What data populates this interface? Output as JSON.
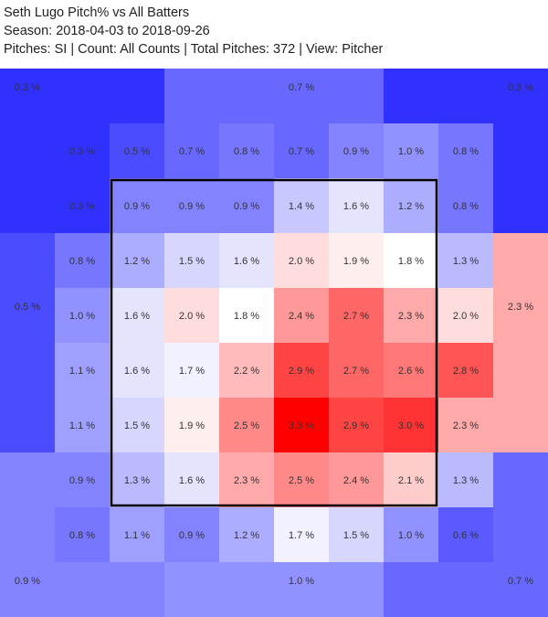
{
  "title": "Seth Lugo Pitch% vs All Batters",
  "season": "Season: 2018-04-03 to 2018-09-26",
  "info": "Pitches: SI | Count: All Counts | Total Pitches: 372 | View: Pitcher",
  "colors": {
    "low": "#3131ff",
    "mid": "#ffffff",
    "high": "#ff0000",
    "zone_border": "#000000"
  },
  "chart_data": {
    "type": "heatmap",
    "unit": "%",
    "color_range": [
      0.3,
      3.3
    ],
    "outer_regions": [
      {
        "name": "top-left",
        "value": 0.3,
        "label": "0.3 %"
      },
      {
        "name": "top-center",
        "value": 0.7,
        "label": "0.7 %"
      },
      {
        "name": "top-right",
        "value": 0.3,
        "label": "0.3 %"
      },
      {
        "name": "middle-left",
        "value": 0.5,
        "label": "0.5 %"
      },
      {
        "name": "middle-right",
        "value": 2.3,
        "label": "2.3 %"
      },
      {
        "name": "bottom-left",
        "value": 0.9,
        "label": "0.9 %"
      },
      {
        "name": "bottom-center",
        "value": 1.0,
        "label": "1.0 %"
      },
      {
        "name": "bottom-right",
        "value": 0.7,
        "label": "0.7 %"
      }
    ],
    "grid": [
      [
        null,
        0.5,
        0.7,
        0.8,
        0.7,
        0.9,
        1.0,
        0.8
      ],
      [
        0.3,
        0.9,
        0.9,
        0.9,
        1.4,
        1.6,
        1.2,
        0.8
      ],
      [
        0.8,
        1.2,
        1.5,
        1.6,
        2.0,
        1.9,
        1.8,
        1.3
      ],
      [
        1.0,
        1.6,
        2.0,
        1.8,
        2.4,
        2.7,
        2.3,
        2.0
      ],
      [
        1.1,
        1.6,
        1.7,
        2.2,
        2.9,
        2.7,
        2.6,
        2.8
      ],
      [
        1.1,
        1.5,
        1.9,
        2.5,
        3.3,
        2.9,
        3.0,
        2.3
      ],
      [
        0.9,
        1.3,
        1.6,
        2.3,
        2.5,
        2.4,
        2.1,
        1.3
      ],
      [
        0.8,
        1.1,
        0.9,
        1.2,
        1.7,
        1.5,
        1.0,
        0.6
      ]
    ],
    "extra_labels": [
      {
        "row": 0,
        "col": 0,
        "value": 0.3,
        "label": "0.3 %"
      }
    ]
  }
}
